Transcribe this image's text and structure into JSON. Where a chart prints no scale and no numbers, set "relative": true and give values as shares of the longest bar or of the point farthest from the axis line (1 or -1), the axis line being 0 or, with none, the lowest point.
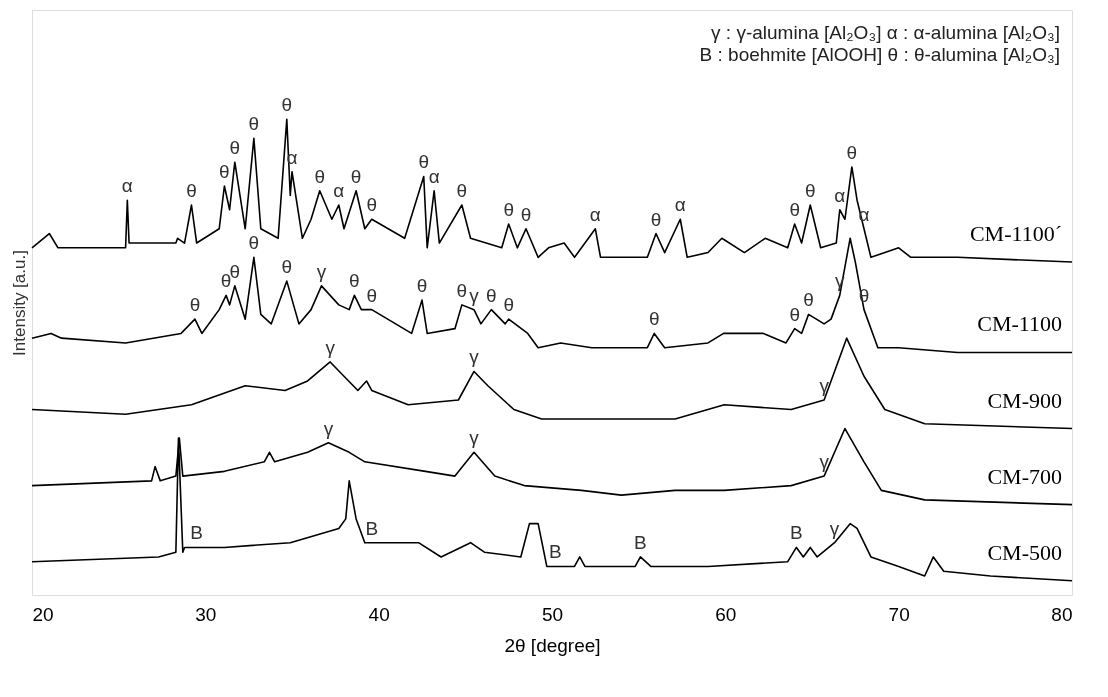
{
  "chart_data": {
    "type": "line",
    "relative": true,
    "xlabel": "2θ [degree]",
    "ylabel": "Intensity [a.u.]",
    "xlim": [
      20,
      80
    ],
    "xticks": [
      20,
      30,
      40,
      50,
      60,
      70,
      80
    ],
    "grid": false,
    "legend": false,
    "marker": "none",
    "line_style": "solid",
    "series": [
      {
        "name": "CM-1100´",
        "color": "#000000",
        "x": [
          20,
          21.0,
          21.5,
          25.4,
          25.5,
          25.6,
          28.3,
          28.4,
          28.8,
          29.2,
          29.5,
          30.8,
          31.1,
          31.4,
          31.7,
          32.3,
          32.8,
          33.2,
          34.2,
          34.7,
          34.9,
          35.0,
          35.6,
          36.1,
          36.6,
          37.3,
          37.7,
          38.0,
          38.7,
          39.2,
          39.6,
          41.5,
          42.6,
          42.8,
          43.2,
          43.5,
          44.8,
          45.3,
          47.1,
          47.5,
          48.0,
          48.5,
          49.2,
          49.8,
          50.7,
          51.3,
          52.5,
          52.8,
          55.5,
          56.0,
          56.5,
          57.4,
          57.8,
          59.0,
          59.8,
          61.1,
          62.3,
          63.6,
          64.0,
          64.4,
          64.9,
          65.5,
          66.4,
          66.6,
          66.9,
          67.3,
          67.6,
          68.0,
          68.4,
          70.0,
          70.7,
          73.4,
          80.0
        ],
        "values": [
          0.73,
          0.76,
          0.73,
          0.73,
          0.83,
          0.74,
          0.74,
          0.75,
          0.74,
          0.82,
          0.74,
          0.77,
          0.86,
          0.81,
          0.91,
          0.77,
          0.96,
          0.77,
          0.75,
          1.0,
          0.84,
          0.89,
          0.75,
          0.79,
          0.85,
          0.79,
          0.82,
          0.77,
          0.85,
          0.77,
          0.79,
          0.75,
          0.88,
          0.73,
          0.85,
          0.74,
          0.82,
          0.75,
          0.73,
          0.78,
          0.73,
          0.77,
          0.71,
          0.73,
          0.74,
          0.71,
          0.77,
          0.71,
          0.71,
          0.76,
          0.72,
          0.79,
          0.71,
          0.72,
          0.75,
          0.72,
          0.75,
          0.73,
          0.78,
          0.74,
          0.82,
          0.73,
          0.74,
          0.81,
          0.79,
          0.9,
          0.83,
          0.77,
          0.71,
          0.73,
          0.71,
          0.71,
          0.7
        ]
      },
      {
        "name": "CM-1100",
        "color": "#000000",
        "x": [
          20,
          21.1,
          21.7,
          25.4,
          28.6,
          29.4,
          29.8,
          30.8,
          31.2,
          31.4,
          31.7,
          32.3,
          32.8,
          33.2,
          33.8,
          34.7,
          35.4,
          36.1,
          36.7,
          37.7,
          38.3,
          38.6,
          39.0,
          39.6,
          41.9,
          42.5,
          42.8,
          44.4,
          44.8,
          45.5,
          45.9,
          46.5,
          47.3,
          47.5,
          48.6,
          49.2,
          50.5,
          52.3,
          55.5,
          55.9,
          56.5,
          59.0,
          59.9,
          62.2,
          63.5,
          64.0,
          64.4,
          64.8,
          65.7,
          66.1,
          66.6,
          67.2,
          67.5,
          68.0,
          68.8,
          70.0,
          73.4,
          80.0
        ],
        "values": [
          0.54,
          0.55,
          0.54,
          0.53,
          0.55,
          0.58,
          0.55,
          0.6,
          0.63,
          0.61,
          0.65,
          0.58,
          0.71,
          0.59,
          0.57,
          0.66,
          0.57,
          0.6,
          0.65,
          0.61,
          0.6,
          0.63,
          0.6,
          0.6,
          0.55,
          0.62,
          0.55,
          0.56,
          0.61,
          0.6,
          0.57,
          0.6,
          0.57,
          0.58,
          0.55,
          0.52,
          0.53,
          0.52,
          0.52,
          0.55,
          0.52,
          0.53,
          0.55,
          0.55,
          0.53,
          0.56,
          0.55,
          0.59,
          0.57,
          0.58,
          0.63,
          0.75,
          0.7,
          0.6,
          0.52,
          0.52,
          0.51,
          0.51
        ]
      },
      {
        "name": "CM-900",
        "color": "#000000",
        "x": [
          20,
          25.4,
          29.2,
          32.3,
          34.6,
          35.9,
          37.2,
          38.8,
          39.3,
          39.6,
          41.7,
          44.6,
          45.5,
          46.3,
          47.8,
          49.4,
          53.2,
          57.1,
          59.94,
          63.8,
          65.7,
          67.0,
          68.0,
          69.2,
          71.5,
          80.0
        ],
        "values": [
          0.39,
          0.38,
          0.4,
          0.44,
          0.43,
          0.45,
          0.49,
          0.43,
          0.45,
          0.43,
          0.4,
          0.41,
          0.47,
          0.44,
          0.39,
          0.37,
          0.37,
          0.37,
          0.4,
          0.39,
          0.41,
          0.54,
          0.46,
          0.39,
          0.36,
          0.35
        ]
      },
      {
        "name": "CM-700",
        "color": "#000000",
        "x": [
          20,
          26.9,
          27.1,
          27.4,
          28.3,
          28.5,
          28.7,
          31.1,
          33.4,
          33.7,
          34.0,
          35.9,
          37.1,
          38.3,
          39.2,
          42.7,
          44.4,
          45.5,
          46.7,
          48.4,
          51.7,
          54.0,
          57.1,
          59.94,
          63.8,
          65.7,
          66.9,
          68.0,
          69.0,
          71.5,
          80.0
        ],
        "values": [
          0.23,
          0.24,
          0.27,
          0.24,
          0.25,
          0.33,
          0.25,
          0.26,
          0.28,
          0.3,
          0.28,
          0.3,
          0.32,
          0.3,
          0.28,
          0.26,
          0.25,
          0.3,
          0.25,
          0.23,
          0.22,
          0.21,
          0.22,
          0.22,
          0.23,
          0.25,
          0.35,
          0.28,
          0.22,
          0.2,
          0.19
        ]
      },
      {
        "name": "CM-500",
        "color": "#000000",
        "x": [
          20,
          27.3,
          28.3,
          28.45,
          28.7,
          28.8,
          31.1,
          34.9,
          37.7,
          38.1,
          38.3,
          38.7,
          39.2,
          42.3,
          43.6,
          45.3,
          46.1,
          48.2,
          48.7,
          49.2,
          49.7,
          51.3,
          51.6,
          51.9,
          54.8,
          55.1,
          55.7,
          59.0,
          63.6,
          64.1,
          64.5,
          64.9,
          65.3,
          66.3,
          67.2,
          67.6,
          68.4,
          70.0,
          71.5,
          72.0,
          72.6,
          75.3,
          80.0
        ],
        "values": [
          0.07,
          0.08,
          0.09,
          0.33,
          0.09,
          0.1,
          0.1,
          0.11,
          0.14,
          0.16,
          0.24,
          0.16,
          0.11,
          0.11,
          0.08,
          0.11,
          0.09,
          0.08,
          0.15,
          0.15,
          0.06,
          0.06,
          0.08,
          0.06,
          0.06,
          0.08,
          0.06,
          0.06,
          0.07,
          0.1,
          0.08,
          0.1,
          0.08,
          0.11,
          0.15,
          0.14,
          0.08,
          0.06,
          0.04,
          0.08,
          0.05,
          0.04,
          0.03
        ]
      }
    ],
    "annotations": [
      "γ : γ-alumina  [Al₂O₃]  α : α-alumina [Al₂O₃]",
      "B : boehmite [AlOOH]  θ : θ-alumina [Al₂O₃]",
      {
        "text": "α",
        "x": 25.5,
        "y": 0.83
      },
      {
        "text": "θ",
        "x": 29.2,
        "y": 0.82
      },
      {
        "text": "θ",
        "x": 31.1,
        "y": 0.86
      },
      {
        "text": "θ",
        "x": 31.7,
        "y": 0.91
      },
      {
        "text": "θ",
        "x": 32.8,
        "y": 0.96
      },
      {
        "text": "θ",
        "x": 34.7,
        "y": 1.0
      },
      {
        "text": "α",
        "x": 35.0,
        "y": 0.89
      },
      {
        "text": "θ",
        "x": 36.6,
        "y": 0.85
      },
      {
        "text": "α",
        "x": 37.7,
        "y": 0.82
      },
      {
        "text": "θ",
        "x": 38.7,
        "y": 0.85
      },
      {
        "text": "θ",
        "x": 39.6,
        "y": 0.79
      },
      {
        "text": "θ",
        "x": 42.6,
        "y": 0.88
      },
      {
        "text": "α",
        "x": 43.2,
        "y": 0.85
      },
      {
        "text": "θ",
        "x": 44.8,
        "y": 0.82
      },
      {
        "text": "θ",
        "x": 47.5,
        "y": 0.78
      },
      {
        "text": "θ",
        "x": 48.5,
        "y": 0.77
      },
      {
        "text": "α",
        "x": 52.5,
        "y": 0.77
      },
      {
        "text": "θ",
        "x": 56.0,
        "y": 0.76
      },
      {
        "text": "α",
        "x": 57.4,
        "y": 0.79
      },
      {
        "text": "θ",
        "x": 64.0,
        "y": 0.78
      },
      {
        "text": "θ",
        "x": 64.9,
        "y": 0.82
      },
      {
        "text": "α",
        "x": 66.6,
        "y": 0.81
      },
      {
        "text": "θ",
        "x": 67.3,
        "y": 0.9
      },
      {
        "text": "α",
        "x": 68.0,
        "y": 0.77
      },
      {
        "text": "θ",
        "x": 29.4,
        "y": 0.58
      },
      {
        "text": "θ",
        "x": 31.2,
        "y": 0.63
      },
      {
        "text": "θ",
        "x": 31.7,
        "y": 0.65
      },
      {
        "text": "θ",
        "x": 32.8,
        "y": 0.71
      },
      {
        "text": "θ",
        "x": 34.7,
        "y": 0.66
      },
      {
        "text": "γ",
        "x": 36.7,
        "y": 0.65
      },
      {
        "text": "θ",
        "x": 38.6,
        "y": 0.63
      },
      {
        "text": "θ",
        "x": 39.6,
        "y": 0.6
      },
      {
        "text": "θ",
        "x": 42.5,
        "y": 0.62
      },
      {
        "text": "θ",
        "x": 44.8,
        "y": 0.61
      },
      {
        "text": "γ",
        "x": 45.5,
        "y": 0.6
      },
      {
        "text": "θ",
        "x": 46.5,
        "y": 0.6
      },
      {
        "text": "θ",
        "x": 47.5,
        "y": 0.58
      },
      {
        "text": "θ",
        "x": 55.9,
        "y": 0.55
      },
      {
        "text": "θ",
        "x": 64.0,
        "y": 0.56
      },
      {
        "text": "θ",
        "x": 64.8,
        "y": 0.59
      },
      {
        "text": "γ",
        "x": 66.6,
        "y": 0.63
      },
      {
        "text": "θ",
        "x": 68.0,
        "y": 0.6
      },
      {
        "text": "γ",
        "x": 37.2,
        "y": 0.49
      },
      {
        "text": "γ",
        "x": 45.5,
        "y": 0.47
      },
      {
        "text": "γ",
        "x": 65.7,
        "y": 0.41
      },
      {
        "text": "γ",
        "x": 37.1,
        "y": 0.32
      },
      {
        "text": "γ",
        "x": 45.5,
        "y": 0.3
      },
      {
        "text": "γ",
        "x": 65.7,
        "y": 0.25
      },
      {
        "text": "B",
        "x": 29.5,
        "y": 0.1
      },
      {
        "text": "B",
        "x": 39.6,
        "y": 0.11
      },
      {
        "text": "B",
        "x": 50.2,
        "y": 0.06
      },
      {
        "text": "B",
        "x": 55.1,
        "y": 0.08
      },
      {
        "text": "B",
        "x": 64.1,
        "y": 0.1
      },
      {
        "text": "γ",
        "x": 66.3,
        "y": 0.11
      }
    ]
  }
}
